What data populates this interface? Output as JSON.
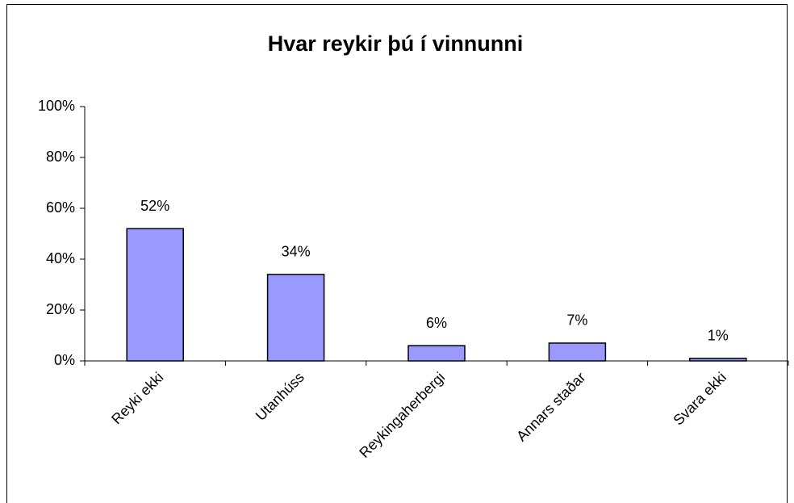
{
  "chart_data": {
    "type": "bar",
    "title": "Hvar reykir þú í vinnunni",
    "categories": [
      "Reyki ekki",
      "Utanhúss",
      "Reykingaherbergi",
      "Annars staðar",
      "Svara ekki"
    ],
    "values": [
      52,
      34,
      6,
      7,
      1
    ],
    "value_labels": [
      "52%",
      "34%",
      "6%",
      "7%",
      "1%"
    ],
    "color": "#9999ff",
    "ylim": [
      0,
      100
    ],
    "yticks": [
      {
        "value": 0,
        "label": "0%"
      },
      {
        "value": 20,
        "label": "20%"
      },
      {
        "value": 40,
        "label": "40%"
      },
      {
        "value": 60,
        "label": "60%"
      },
      {
        "value": 80,
        "label": "80%"
      },
      {
        "value": 100,
        "label": "100%"
      }
    ],
    "grid": false
  }
}
